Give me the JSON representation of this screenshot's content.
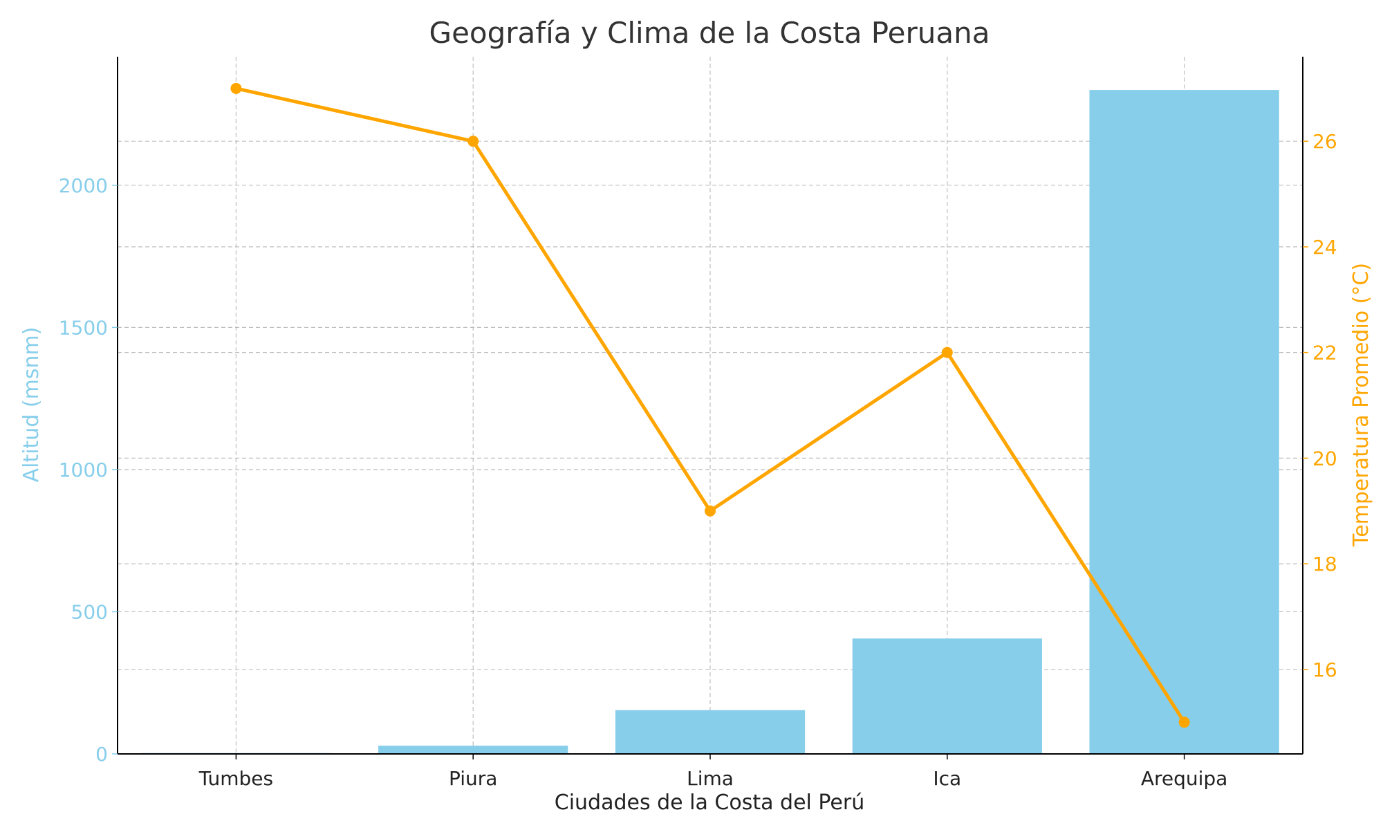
{
  "chart_data": {
    "type": "bar",
    "title": "Geografía y Clima de la Costa Peruana",
    "xlabel": "Ciudades de la Costa del Perú",
    "categories": [
      "Tumbes",
      "Piura",
      "Lima",
      "Ica",
      "Arequipa"
    ],
    "series": [
      {
        "type": "bar",
        "axis": "left",
        "values": [
          3,
          29,
          154,
          406,
          2335
        ],
        "color": "#87CEEB"
      },
      {
        "type": "line",
        "axis": "right",
        "values": [
          27,
          26,
          19,
          22,
          15
        ],
        "color": "#FFA500"
      }
    ],
    "y_left": {
      "label": "Altitud (msnm)",
      "ticks": [
        0,
        500,
        1000,
        1500,
        2000
      ],
      "tick_labels": [
        "0",
        "500",
        "1000",
        "1500",
        "2000"
      ],
      "lim": [
        0,
        2452
      ],
      "color": "#87CEEB"
    },
    "y_right": {
      "label": "Temperatura Promedio (°C)",
      "ticks": [
        16,
        18,
        20,
        22,
        24,
        26
      ],
      "tick_labels": [
        "16",
        "18",
        "20",
        "22",
        "24",
        "26"
      ],
      "lim": [
        14.4,
        27.6
      ],
      "color": "#FFA500"
    },
    "grid": true
  }
}
